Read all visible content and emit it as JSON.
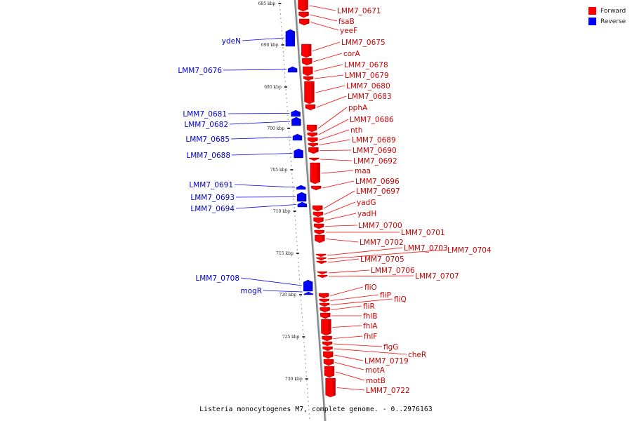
{
  "caption": "Listeria monocytogenes M7, complete genome. - 0..2976163",
  "legend": [
    {
      "label": "Forward",
      "color": "#ff0000"
    },
    {
      "label": "Reverse",
      "color": "#0000ff"
    }
  ],
  "colors": {
    "forward": "#ff0000",
    "reverse": "#0000ff",
    "forward_label": "#cc0000",
    "reverse_label": "#0000cc",
    "backbone": "#888888"
  },
  "scale": {
    "unit": "kbp",
    "ticks": [
      "685 kbp",
      "690 kbp",
      "695 kbp",
      "700 kbp",
      "705 kbp",
      "710 kbp",
      "715 kbp",
      "720 kbp",
      "725 kbp",
      "730 kbp"
    ]
  },
  "forward_genes": [
    "LMM7_0671",
    "fsaB",
    "yeeF",
    "LMM7_0675",
    "corA",
    "LMM7_0678",
    "LMM7_0679",
    "LMM7_0680",
    "LMM7_0683",
    "pphA",
    "LMM7_0686",
    "nth",
    "LMM7_0689",
    "LMM7_0690",
    "LMM7_0692",
    "maa",
    "LMM7_0696",
    "LMM7_0697",
    "yadG",
    "yadH",
    "LMM7_0700",
    "LMM7_0701",
    "LMM7_0702",
    "LMM7_0703",
    "LMM7_0704",
    "LMM7_0705",
    "LMM7_0706",
    "LMM7_0707",
    "fliO",
    "fliP",
    "fliQ",
    "fliR",
    "fhlB",
    "fhlA",
    "fhlF",
    "flgG",
    "cheR",
    "LMM7_0719",
    "motA",
    "motB",
    "LMM7_0722"
  ],
  "reverse_genes": [
    "ydeN",
    "LMM7_0676",
    "LMM7_0681",
    "LMM7_0682",
    "LMM7_0685",
    "LMM7_0688",
    "LMM7_0691",
    "LMM7_0693",
    "LMM7_0694",
    "LMM7_0708",
    "mogR"
  ]
}
